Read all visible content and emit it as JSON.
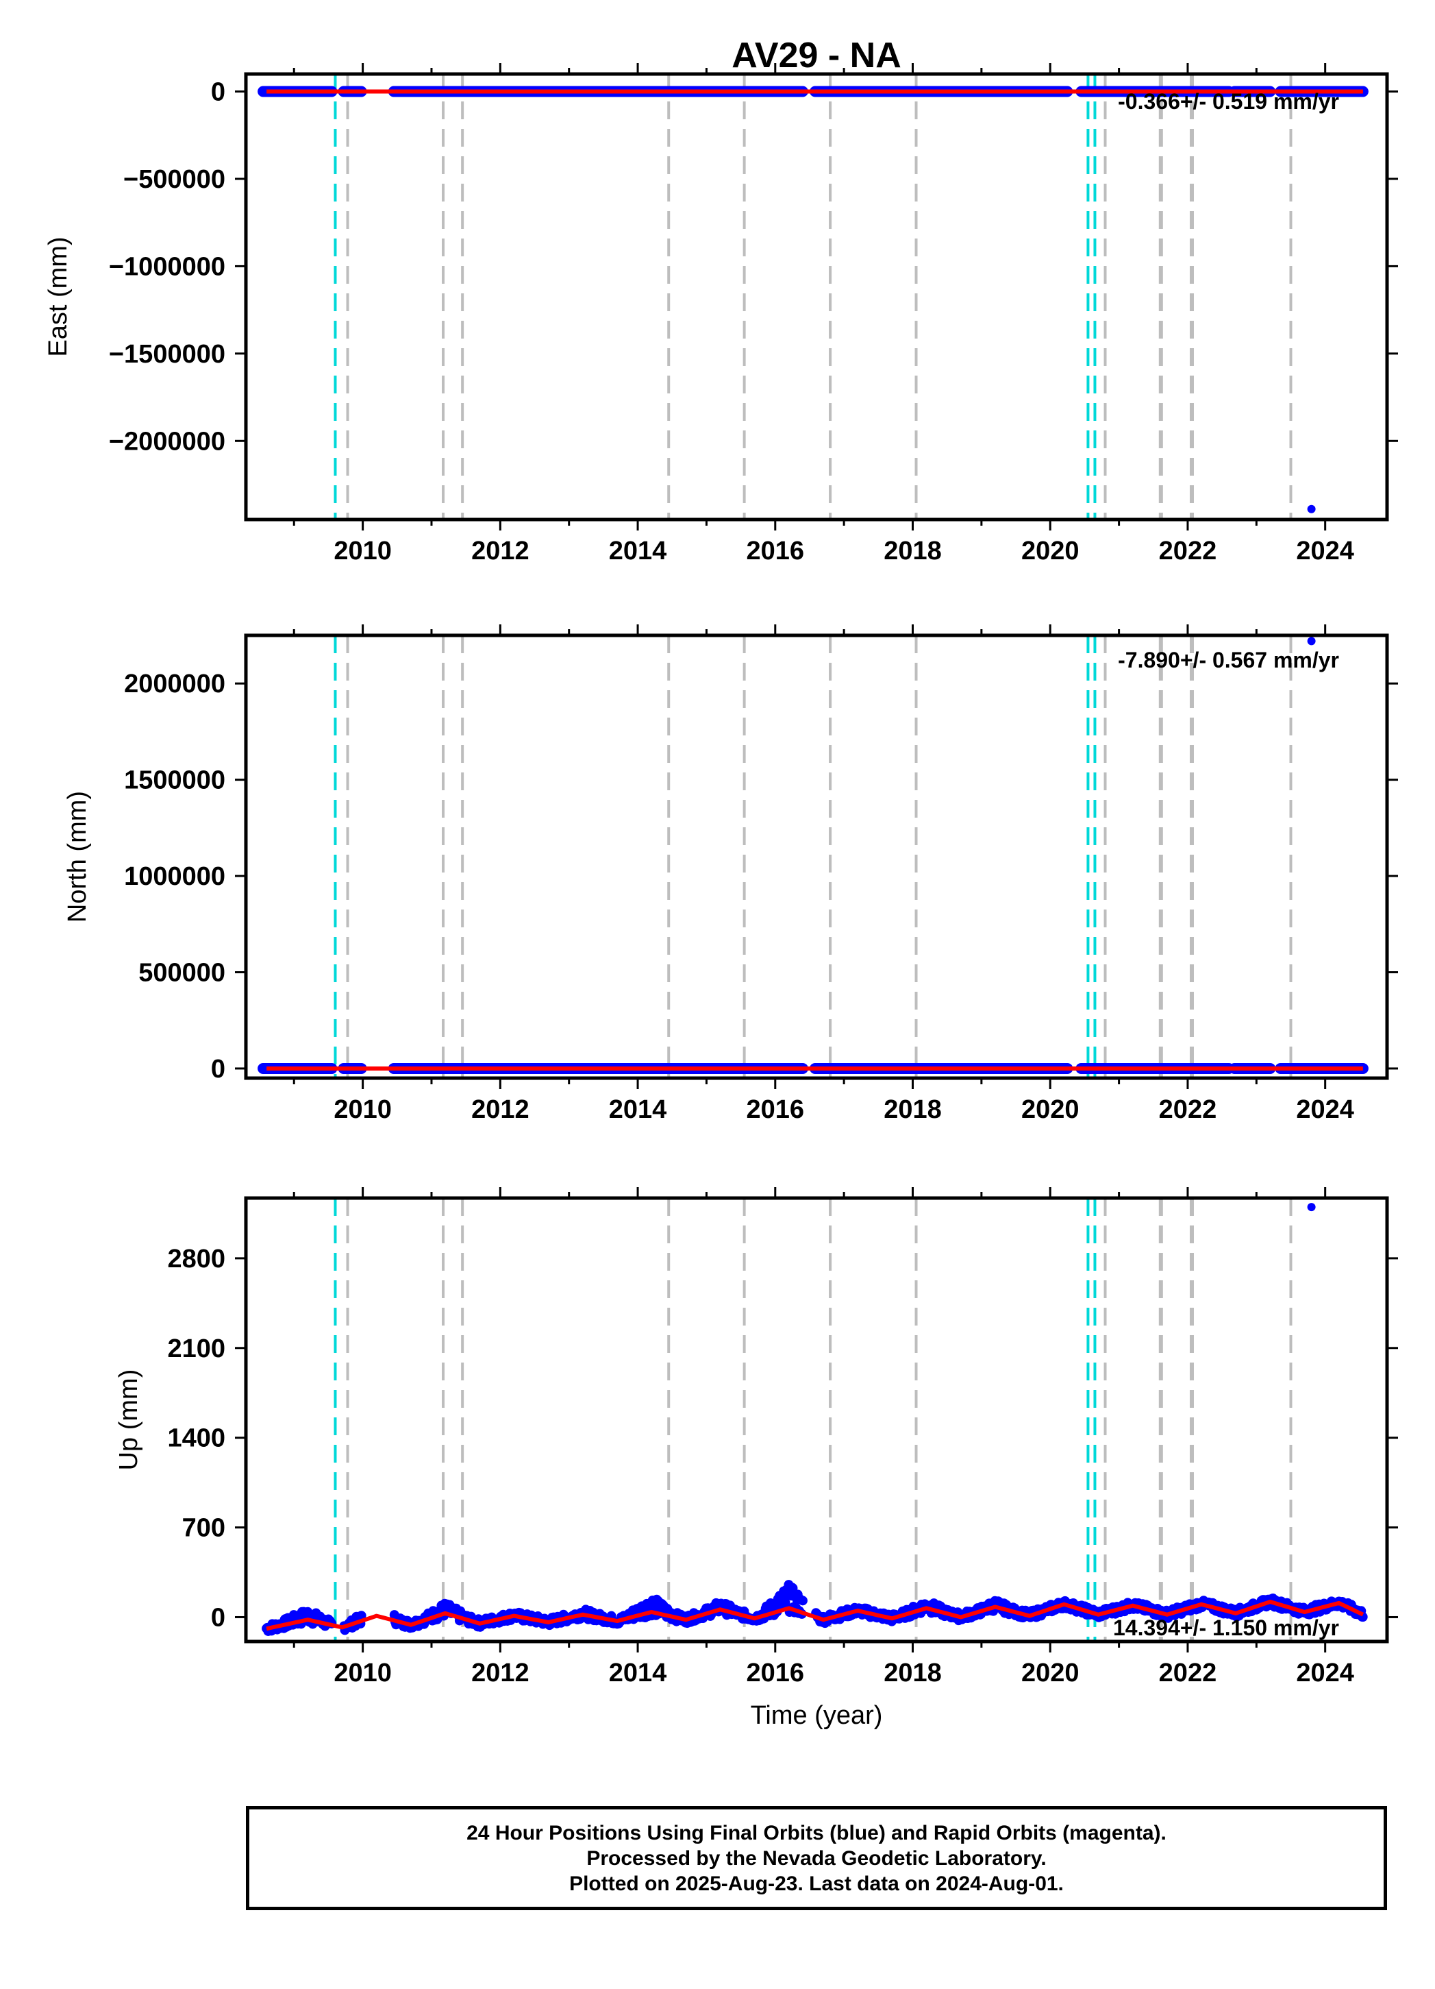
{
  "figure": {
    "title": "AV29 - NA",
    "x_axis_label": "Time (year)"
  },
  "chart_data": [
    {
      "type": "scatter",
      "panel": "east",
      "ylabel": "East (mm)",
      "ylim": [
        -2450000,
        100000
      ],
      "yticks": [
        0,
        -500000,
        -1000000,
        -1500000,
        -2000000
      ],
      "ytick_labels": [
        "0",
        "−500000",
        "−1000000",
        "−1500000",
        "−2000000"
      ],
      "xlim": [
        2008.3,
        2024.9
      ],
      "xticks": [
        2010,
        2012,
        2014,
        2016,
        2018,
        2020,
        2022,
        2024
      ],
      "xtick_labels": [
        "2010",
        "2012",
        "2014",
        "2016",
        "2018",
        "2020",
        "2022",
        "2024"
      ],
      "rate_text": "-0.366+/- 0.519 mm/yr",
      "outliers": [
        {
          "x": 2023.8,
          "y": -2390000
        }
      ],
      "data_segments": [
        [
          2008.55,
          2009.55
        ],
        [
          2009.72,
          2009.98
        ],
        [
          2010.45,
          2016.4
        ],
        [
          2016.58,
          2020.25
        ],
        [
          2020.45,
          2022.6
        ],
        [
          2022.68,
          2023.2
        ],
        [
          2023.35,
          2024.55
        ]
      ],
      "model_trend": {
        "start": [
          2008.6,
          0
        ],
        "end": [
          2024.55,
          0
        ]
      }
    },
    {
      "type": "scatter",
      "panel": "north",
      "ylabel": "North (mm)",
      "ylim": [
        -50000,
        2250000
      ],
      "yticks": [
        0,
        500000,
        1000000,
        1500000,
        2000000
      ],
      "ytick_labels": [
        "0",
        "500000",
        "1000000",
        "1500000",
        "2000000"
      ],
      "xlim": [
        2008.3,
        2024.9
      ],
      "xticks": [
        2010,
        2012,
        2014,
        2016,
        2018,
        2020,
        2022,
        2024
      ],
      "xtick_labels": [
        "2010",
        "2012",
        "2014",
        "2016",
        "2018",
        "2020",
        "2022",
        "2024"
      ],
      "rate_text": "-7.890+/- 0.567 mm/yr",
      "outliers": [
        {
          "x": 2023.8,
          "y": 2220000
        }
      ],
      "data_segments": [
        [
          2008.55,
          2009.55
        ],
        [
          2009.72,
          2009.98
        ],
        [
          2010.45,
          2016.4
        ],
        [
          2016.58,
          2020.25
        ],
        [
          2020.45,
          2022.6
        ],
        [
          2022.68,
          2023.2
        ],
        [
          2023.35,
          2024.55
        ]
      ],
      "model_trend": {
        "start": [
          2008.6,
          0
        ],
        "end": [
          2024.55,
          0
        ]
      }
    },
    {
      "type": "scatter",
      "panel": "up",
      "ylabel": "Up (mm)",
      "ylim": [
        -190,
        3270
      ],
      "yticks": [
        0,
        700,
        1400,
        2100,
        2800
      ],
      "ytick_labels": [
        "0",
        "700",
        "1400",
        "2100",
        "2800"
      ],
      "xlim": [
        2008.3,
        2024.9
      ],
      "xticks": [
        2010,
        2012,
        2014,
        2016,
        2018,
        2020,
        2022,
        2024
      ],
      "xtick_labels": [
        "2010",
        "2012",
        "2014",
        "2016",
        "2018",
        "2020",
        "2022",
        "2024"
      ],
      "rate_text": "14.394+/- 1.150 mm/yr",
      "outliers": [
        {
          "x": 2023.8,
          "y": 3200
        }
      ],
      "seasonal_model": {
        "x": [
          2008.6,
          2009.2,
          2009.7,
          2010.2,
          2010.7,
          2011.2,
          2011.7,
          2012.2,
          2012.7,
          2013.2,
          2013.7,
          2014.2,
          2014.7,
          2015.2,
          2015.7,
          2016.2,
          2016.7,
          2017.2,
          2017.7,
          2018.2,
          2018.7,
          2019.2,
          2019.7,
          2020.2,
          2020.7,
          2021.2,
          2021.7,
          2022.2,
          2022.7,
          2023.2,
          2023.7,
          2024.2,
          2024.55
        ],
        "y": [
          -90,
          -20,
          -80,
          10,
          -60,
          30,
          -50,
          10,
          -40,
          20,
          -30,
          40,
          -20,
          60,
          -10,
          70,
          -20,
          50,
          -10,
          70,
          0,
          80,
          10,
          100,
          20,
          90,
          20,
          100,
          30,
          120,
          40,
          110,
          20
        ]
      },
      "scatter_band": {
        "x": [
          2008.6,
          2009.2,
          2009.7,
          2010.2,
          2010.7,
          2011.2,
          2011.7,
          2012.2,
          2012.7,
          2013.2,
          2013.7,
          2014.2,
          2014.7,
          2015.2,
          2015.7,
          2016.2,
          2016.7,
          2017.2,
          2017.7,
          2018.2,
          2018.7,
          2019.2,
          2019.7,
          2020.2,
          2020.7,
          2021.2,
          2021.7,
          2022.2,
          2022.7,
          2023.2,
          2023.7,
          2024.2,
          2024.55
        ],
        "y": [
          -90,
          60,
          -80,
          100,
          -60,
          110,
          -50,
          40,
          -40,
          60,
          -30,
          160,
          -20,
          120,
          -10,
          250,
          -20,
          60,
          -10,
          130,
          0,
          130,
          10,
          100,
          20,
          40,
          20,
          80,
          30,
          120,
          40,
          60,
          50
        ]
      },
      "gaps": [
        [
          2009.55,
          2009.72
        ],
        [
          2009.98,
          2010.45
        ],
        [
          2016.4,
          2016.58
        ]
      ]
    }
  ],
  "offsets": {
    "equipment_change_years": [
      2009.6,
      2020.55,
      2020.65
    ],
    "other_offset_years": [
      2009.78,
      2011.17,
      2011.45,
      2014.45,
      2015.55,
      2016.8,
      2018.05,
      2020.8,
      2021.6,
      2021.62,
      2022.05,
      2022.07,
      2023.5
    ]
  },
  "colors": {
    "final_orbits": "#0000ff",
    "rapid_orbits": "#d400d4",
    "model": "#ff0000",
    "equipment_change": "#00d8d8",
    "other_offset": "#bdbdbd",
    "axes": "#000000"
  },
  "footer": {
    "line1": "24 Hour Positions Using Final Orbits (blue) and Rapid Orbits (magenta).",
    "line2": "Processed by the Nevada Geodetic Laboratory.",
    "line3": "Plotted on 2025-Aug-23. Last data on 2024-Aug-01."
  }
}
